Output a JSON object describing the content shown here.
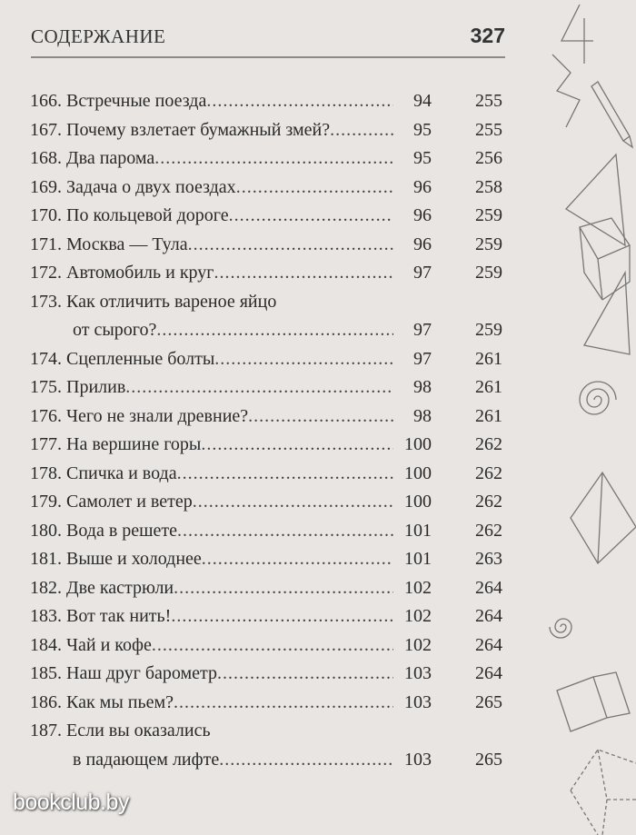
{
  "header": {
    "title": "СОДЕРЖАНИЕ",
    "page_number": "327"
  },
  "entries": [
    {
      "lines": [
        "166. Встречные поезда"
      ],
      "p1": "94",
      "p2": "255"
    },
    {
      "lines": [
        "167. Почему взлетает бумажный змей?"
      ],
      "p1": "95",
      "p2": "255"
    },
    {
      "lines": [
        "168. Два парома"
      ],
      "p1": "95",
      "p2": "256"
    },
    {
      "lines": [
        "169. Задача о двух поездах"
      ],
      "p1": "96",
      "p2": "258"
    },
    {
      "lines": [
        "170. По кольцевой дороге"
      ],
      "p1": "96",
      "p2": "259"
    },
    {
      "lines": [
        "171. Москва — Тула"
      ],
      "p1": "96",
      "p2": "259"
    },
    {
      "lines": [
        "172. Автомобиль и круг"
      ],
      "p1": "97",
      "p2": "259"
    },
    {
      "lines": [
        "173. Как отличить вареное яйцо",
        "от сырого?"
      ],
      "p1": "97",
      "p2": "259"
    },
    {
      "lines": [
        "174. Сцепленные болты"
      ],
      "p1": "97",
      "p2": "261"
    },
    {
      "lines": [
        "175. Прилив"
      ],
      "p1": "98",
      "p2": "261"
    },
    {
      "lines": [
        "176. Чего не знали древние?"
      ],
      "p1": "98",
      "p2": "261"
    },
    {
      "lines": [
        "177. На вершине горы"
      ],
      "p1": "100",
      "p2": "262"
    },
    {
      "lines": [
        "178. Спичка и вода"
      ],
      "p1": "100",
      "p2": "262"
    },
    {
      "lines": [
        "179. Самолет и ветер"
      ],
      "p1": "100",
      "p2": "262"
    },
    {
      "lines": [
        "180. Вода в решете"
      ],
      "p1": "101",
      "p2": "262"
    },
    {
      "lines": [
        "181. Выше и холоднее"
      ],
      "p1": "101",
      "p2": "263"
    },
    {
      "lines": [
        "182. Две кастрюли"
      ],
      "p1": "102",
      "p2": "264"
    },
    {
      "lines": [
        "183. Вот так нить!"
      ],
      "p1": "102",
      "p2": "264"
    },
    {
      "lines": [
        "184. Чай и кофе"
      ],
      "p1": "102",
      "p2": "264"
    },
    {
      "lines": [
        "185. Наш друг барометр"
      ],
      "p1": "103",
      "p2": "264"
    },
    {
      "lines": [
        "186. Как мы пьем?"
      ],
      "p1": "103",
      "p2": "265"
    },
    {
      "lines": [
        "187. Если вы оказались",
        "в падающем лифте"
      ],
      "p1": "103",
      "p2": "265"
    }
  ],
  "watermark": "bookclub.by",
  "colors": {
    "paper": "#e9e5e2",
    "text": "#2a2a2a"
  }
}
